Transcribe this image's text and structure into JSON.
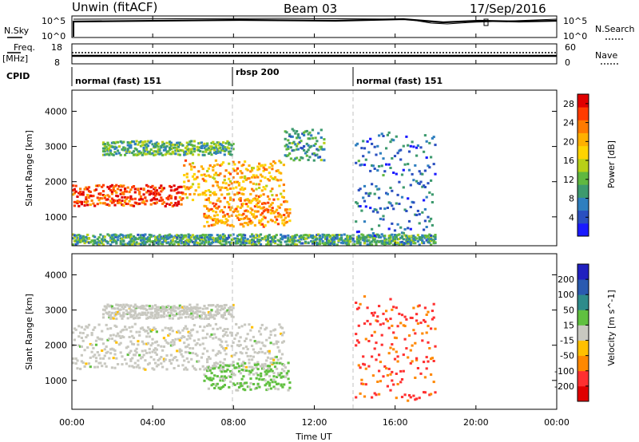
{
  "header": {
    "station": "Unwin (fitACF)",
    "beam": "Beam 03",
    "date": "17/Sep/2016"
  },
  "colors": {
    "power": [
      "#1a1aff",
      "#2a4fc0",
      "#2f7fbf",
      "#3d9a6e",
      "#60b840",
      "#b8d018",
      "#ffd400",
      "#ffb000",
      "#ff7a00",
      "#ff3c00",
      "#e00000"
    ],
    "velocity": [
      "#e00000",
      "#ff3030",
      "#ff8800",
      "#ffc000",
      "#c8c8c0",
      "#60c040",
      "#2e8b8b",
      "#2a5ab0",
      "#2020c0"
    ]
  },
  "nsky_panel": {
    "left_label": "N.Sky",
    "right_label": "N.Search",
    "left_ticks": [
      "10^5",
      "10^0"
    ],
    "right_ticks": [
      "10^5",
      "10^0"
    ]
  },
  "freq_panel": {
    "left_label_1": "Freq.",
    "left_label_2": "[MHz]",
    "right_label": "Nave",
    "left_ticks": [
      "18",
      "8"
    ],
    "right_ticks": [
      "60",
      "0"
    ]
  },
  "cpid": {
    "label": "CPID",
    "segments": [
      {
        "start": 0,
        "end": 8,
        "name": "normal (fast) 151"
      },
      {
        "start": 8,
        "end": 14,
        "name": "rbsp 200"
      },
      {
        "start": 14,
        "end": 24,
        "name": "normal (fast) 151"
      }
    ]
  },
  "x_axis": {
    "label": "Time UT",
    "ticks": [
      "00:00",
      "04:00",
      "08:00",
      "12:00",
      "16:00",
      "20:00",
      "00:00"
    ]
  },
  "chart_data": [
    {
      "type": "heatmap",
      "name": "power",
      "xlabel": "Time UT",
      "ylabel": "Slant Range [km]",
      "xlim": [
        0,
        24
      ],
      "ylim": [
        180,
        4600
      ],
      "yticks": [
        "1000",
        "2000",
        "3000",
        "4000"
      ],
      "colorbar": {
        "label": "Power [dB]",
        "ticks": [
          "4",
          "8",
          "12",
          "16",
          "20",
          "24",
          "28"
        ],
        "range": [
          0,
          30
        ]
      },
      "regions": [
        {
          "label": "main band",
          "t0": 0,
          "t1": 5.5,
          "r0": 1300,
          "r1": 1900,
          "value": 26
        },
        {
          "label": "main band rising",
          "t0": 5.5,
          "t1": 10.5,
          "r0": 1450,
          "r1": 2600,
          "value": 20
        },
        {
          "label": "upper band",
          "t0": 1.5,
          "t1": 8,
          "r0": 2750,
          "r1": 3150,
          "value": 11
        },
        {
          "label": "lower band",
          "t0": 6.5,
          "t1": 10.8,
          "r0": 720,
          "r1": 1500,
          "value": 22
        },
        {
          "label": "arc top",
          "t0": 10.5,
          "t1": 12.5,
          "r0": 2600,
          "r1": 3500,
          "value": 9
        },
        {
          "label": "near range",
          "t0": 0,
          "t1": 18,
          "r0": 200,
          "r1": 500,
          "value": 10
        },
        {
          "label": "afternoon streaks",
          "t0": 14,
          "t1": 18,
          "r0": 400,
          "r1": 3400,
          "value": 6
        }
      ]
    },
    {
      "type": "heatmap",
      "name": "velocity",
      "xlabel": "Time UT",
      "ylabel": "Slant Range [km]",
      "xlim": [
        0,
        24
      ],
      "ylim": [
        180,
        4600
      ],
      "yticks": [
        "1000",
        "2000",
        "3000",
        "4000"
      ],
      "colorbar": {
        "label": "Velocity [m s^-1]",
        "ticks": [
          "200",
          "100",
          "50",
          "15",
          "-15",
          "-50",
          "-100",
          "-200"
        ],
        "range": [
          -250,
          250
        ]
      },
      "regions": [
        {
          "label": "main band",
          "t0": 0,
          "t1": 10.5,
          "r0": 1300,
          "r1": 2600,
          "value": 0
        },
        {
          "label": "lower band",
          "t0": 6.5,
          "t1": 10.8,
          "r0": 720,
          "r1": 1500,
          "value": 40
        },
        {
          "label": "upper band",
          "t0": 1.5,
          "t1": 8,
          "r0": 2750,
          "r1": 3150,
          "value": 0
        },
        {
          "label": "afternoon streaks",
          "t0": 14,
          "t1": 18,
          "r0": 400,
          "r1": 3400,
          "value": -150
        }
      ]
    }
  ]
}
